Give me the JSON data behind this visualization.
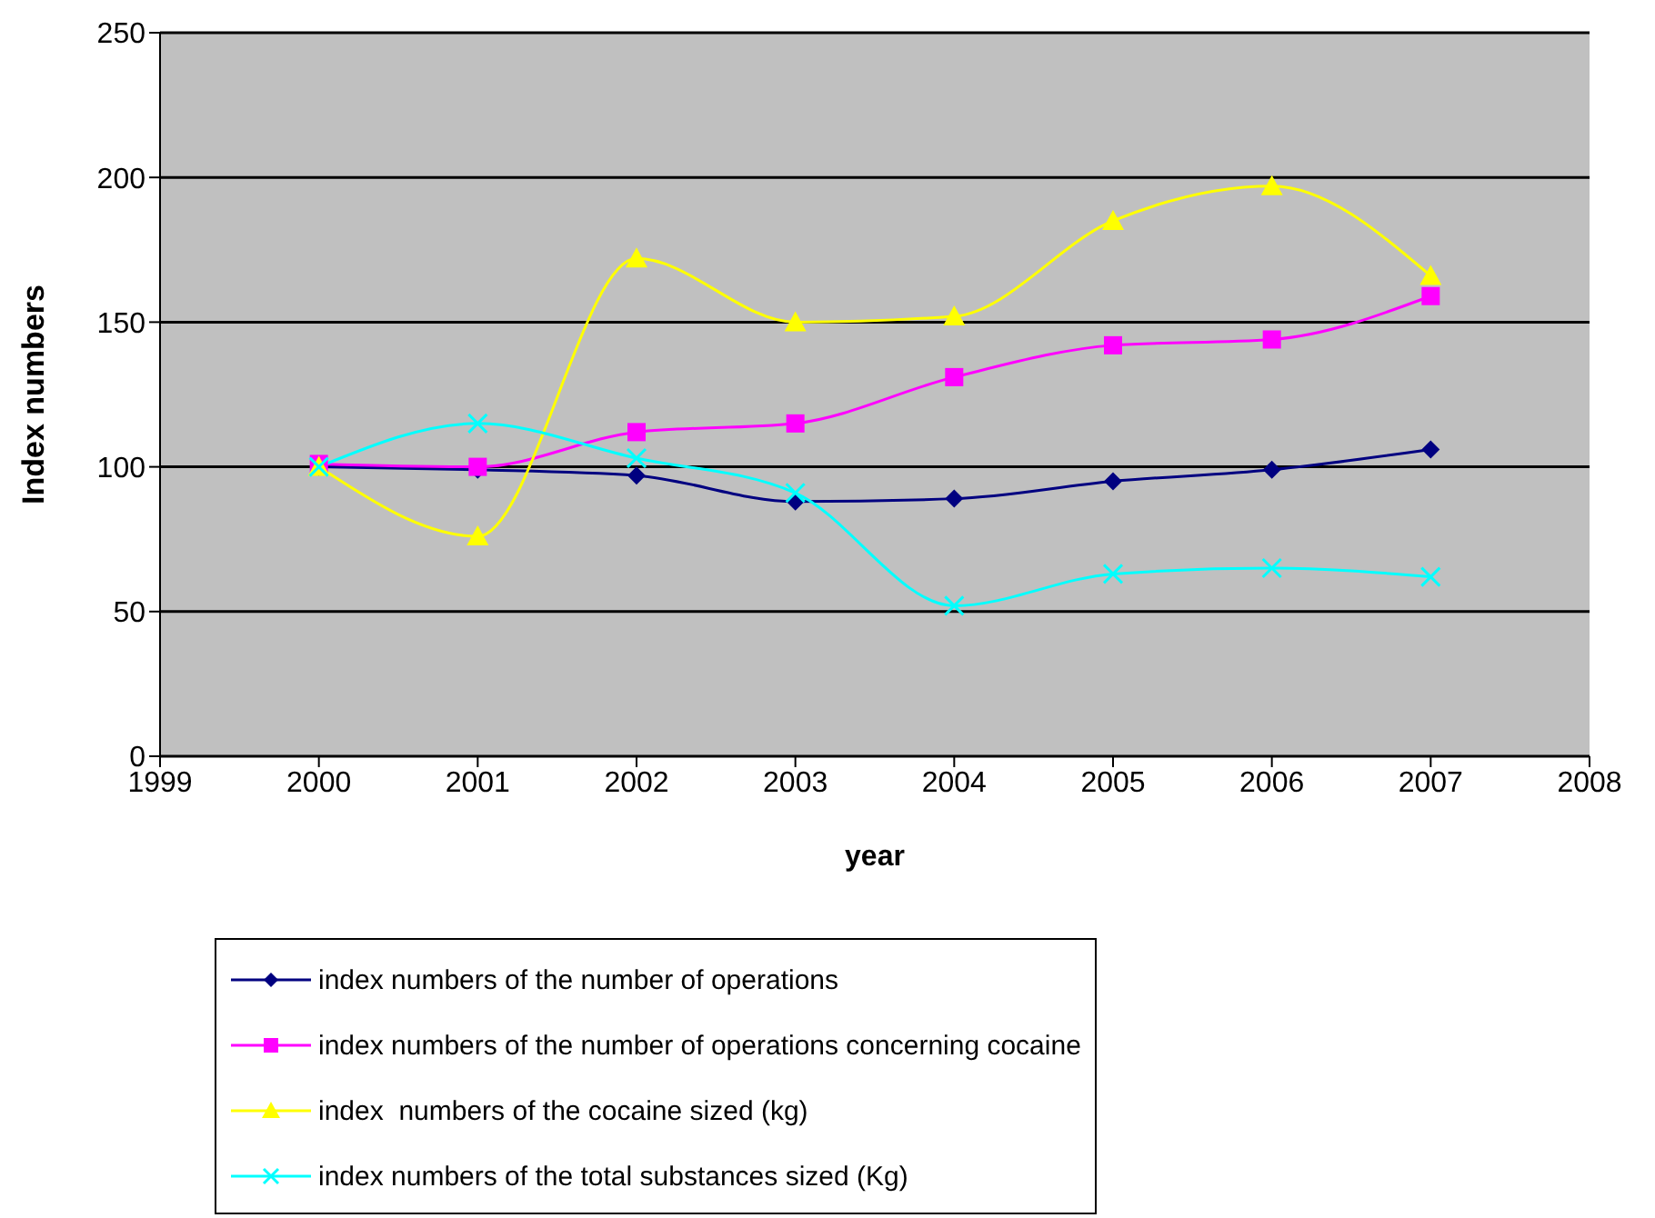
{
  "chart_data": {
    "type": "line",
    "xlabel": "year",
    "ylabel": "Index numbers",
    "x": [
      2000,
      2001,
      2002,
      2003,
      2004,
      2005,
      2006,
      2007
    ],
    "xlim": [
      1999,
      2008
    ],
    "xticks": [
      1999,
      2000,
      2001,
      2002,
      2003,
      2004,
      2005,
      2006,
      2007,
      2008
    ],
    "ylim": [
      0,
      250
    ],
    "yticks": [
      0,
      50,
      100,
      150,
      200,
      250
    ],
    "grid": "y",
    "legend": "bottom",
    "series": [
      {
        "name": "index numbers of the number of operations",
        "color": "#000080",
        "marker": "diamond",
        "values": [
          100,
          99,
          97,
          88,
          89,
          95,
          99,
          106
        ]
      },
      {
        "name": "index numbers of the number of operations concerning cocaine",
        "color": "#ff00ff",
        "marker": "square",
        "values": [
          101,
          100,
          112,
          115,
          131,
          142,
          144,
          159
        ]
      },
      {
        "name": "index  numbers of the cocaine sized (kg)",
        "color": "#ffff00",
        "marker": "triangle",
        "values": [
          100,
          76,
          172,
          150,
          152,
          185,
          197,
          166
        ]
      },
      {
        "name": "index numbers of the total substances sized (Kg)",
        "color": "#00ffff",
        "marker": "cross",
        "values": [
          100,
          115,
          103,
          91,
          52,
          63,
          65,
          62
        ]
      }
    ]
  }
}
